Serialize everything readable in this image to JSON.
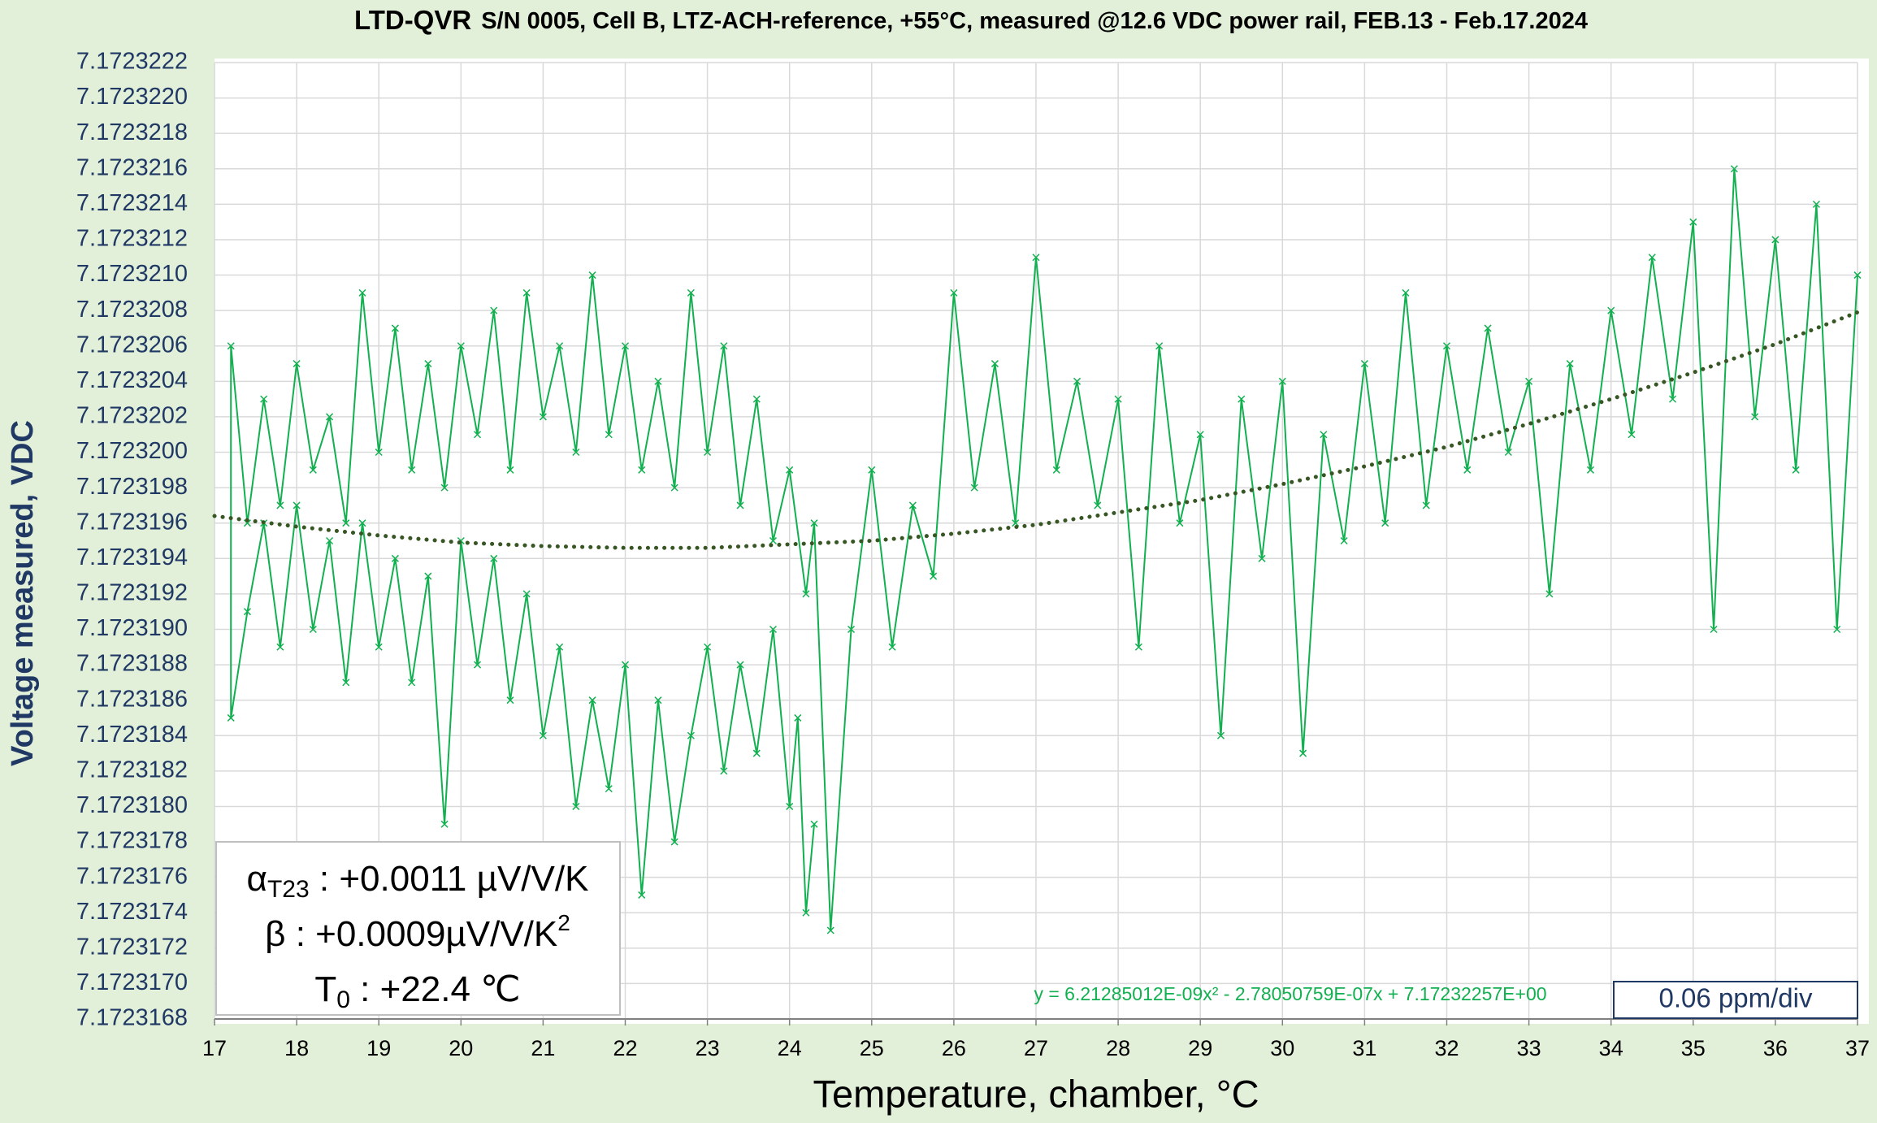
{
  "chart_data": {
    "type": "line",
    "title_prefix": "LTD-QVR",
    "title": "S/N 0005, Cell B, LTZ-ACH-reference, +55°C, measured @12.6 VDC power rail, FEB.13 - Feb.17.2024",
    "x_label": "Temperature, chamber, °C",
    "y_label": "Voltage measured, VDC",
    "xlim": [
      17,
      37
    ],
    "xticks": [
      17,
      18,
      19,
      20,
      21,
      22,
      23,
      24,
      25,
      26,
      27,
      28,
      29,
      30,
      31,
      32,
      33,
      34,
      35,
      36,
      37
    ],
    "ylim": [
      7.1723168,
      7.1723222
    ],
    "yticks": [
      7.1723168,
      {
        "value": 7.172317,
        "label": "7.1723170"
      },
      7.1723172,
      7.1723174,
      7.1723176,
      7.1723178,
      {
        "value": 7.172318,
        "label": "7.1723180"
      },
      7.1723182,
      7.1723184,
      7.1723186,
      7.1723188,
      {
        "value": 7.172319,
        "label": "7.1723190"
      },
      7.1723192,
      7.1723194,
      7.1723196,
      7.1723198,
      {
        "value": 7.17232,
        "label": "7.1723200"
      },
      7.1723202,
      7.1723204,
      7.1723206,
      7.1723208,
      {
        "value": 7.172321,
        "label": "7.1723210"
      },
      7.1723212,
      7.1723214,
      7.1723216,
      7.1723218,
      {
        "value": 7.172322,
        "label": "7.1723220"
      },
      7.1723222
    ],
    "grid": true,
    "series": [
      {
        "color": "#12b050",
        "marker": "x",
        "x": [
          24.3,
          24.2,
          24.1,
          24.0,
          23.8,
          23.6,
          23.4,
          23.2,
          23.0,
          22.8,
          22.6,
          22.4,
          22.2,
          22.0,
          21.8,
          21.6,
          21.4,
          21.2,
          21.0,
          20.8,
          20.6,
          20.4,
          20.2,
          20.0,
          19.8,
          19.6,
          19.4,
          19.2,
          19.0,
          18.8,
          18.6,
          18.4,
          18.2,
          18.0,
          17.8,
          17.6,
          17.4,
          17.2,
          17.2,
          17.4,
          17.6,
          17.8,
          18.0,
          18.2,
          18.4,
          18.6,
          18.8,
          19.0,
          19.2,
          19.4,
          19.6,
          19.8,
          20.0,
          20.2,
          20.4,
          20.6,
          20.8,
          21.0,
          21.2,
          21.4,
          21.6,
          21.8,
          22.0,
          22.2,
          22.4,
          22.6,
          22.8,
          23.0,
          23.2,
          23.4,
          23.6,
          23.8,
          24.0,
          24.2,
          24.3,
          24.5,
          24.75,
          25,
          25.25,
          25.5,
          25.75,
          26,
          26.25,
          26.5,
          26.75,
          27,
          27.25,
          27.5,
          27.75,
          28,
          28.25,
          28.5,
          28.75,
          29,
          29.25,
          29.5,
          29.75,
          30,
          30.25,
          30.5,
          30.75,
          31,
          31.25,
          31.5,
          31.75,
          32,
          32.25,
          32.5,
          32.75,
          33,
          33.25,
          33.5,
          33.75,
          34,
          34.25,
          34.5,
          34.75,
          35,
          35.25,
          35.5,
          35.75,
          36,
          36.25,
          36.5,
          36.75,
          37
        ],
        "values": [
          7.1723179,
          7.1723174,
          7.1723185,
          7.172318,
          7.172319,
          7.1723183,
          7.1723188,
          7.1723182,
          7.1723189,
          7.1723184,
          7.1723178,
          7.1723186,
          7.1723175,
          7.1723188,
          7.1723181,
          7.1723186,
          7.172318,
          7.1723189,
          7.1723184,
          7.1723192,
          7.1723186,
          7.1723194,
          7.1723188,
          7.1723195,
          7.1723179,
          7.1723193,
          7.1723187,
          7.1723194,
          7.1723189,
          7.1723196,
          7.1723187,
          7.1723195,
          7.172319,
          7.1723197,
          7.1723189,
          7.1723196,
          7.1723191,
          7.1723185,
          7.1723206,
          7.1723196,
          7.1723203,
          7.1723197,
          7.1723205,
          7.1723199,
          7.1723202,
          7.1723196,
          7.1723209,
          7.17232,
          7.1723207,
          7.1723199,
          7.1723205,
          7.1723198,
          7.1723206,
          7.1723201,
          7.1723208,
          7.1723199,
          7.1723209,
          7.1723202,
          7.1723206,
          7.17232,
          7.172321,
          7.1723201,
          7.1723206,
          7.1723199,
          7.1723204,
          7.1723198,
          7.1723209,
          7.17232,
          7.1723206,
          7.1723197,
          7.1723203,
          7.1723195,
          7.1723199,
          7.1723192,
          7.1723196,
          7.1723173,
          7.172319,
          7.1723199,
          7.1723189,
          7.1723197,
          7.1723193,
          7.1723209,
          7.1723198,
          7.1723205,
          7.1723196,
          7.1723211,
          7.1723199,
          7.1723204,
          7.1723197,
          7.1723203,
          7.1723189,
          7.1723206,
          7.1723196,
          7.1723201,
          7.1723184,
          7.1723203,
          7.1723194,
          7.1723204,
          7.1723183,
          7.1723201,
          7.1723195,
          7.1723205,
          7.1723196,
          7.1723209,
          7.1723197,
          7.1723206,
          7.1723199,
          7.1723207,
          7.17232,
          7.1723204,
          7.1723192,
          7.1723205,
          7.1723199,
          7.1723208,
          7.1723201,
          7.1723211,
          7.1723203,
          7.1723213,
          7.172319,
          7.1723216,
          7.1723202,
          7.1723212,
          7.1723199,
          7.1723214,
          7.172319,
          7.172321
        ]
      }
    ],
    "trendline": {
      "color": "#375623",
      "style": "dotted",
      "equation": "y = 6.21285012E-09x² - 2.78050759E-07x + 7.17232257E+00",
      "x": [
        17,
        18,
        19,
        20,
        21,
        22,
        23,
        24,
        25,
        26,
        27,
        28,
        29,
        30,
        31,
        32,
        33,
        34,
        35,
        36,
        37
      ],
      "values": [
        7.17231964,
        7.17231958,
        7.17231953,
        7.17231949,
        7.17231947,
        7.17231946,
        7.17231946,
        7.17231948,
        7.1723195,
        7.17231954,
        7.17231959,
        7.17231966,
        7.17231973,
        7.17231982,
        7.17231992,
        7.17232003,
        7.17232016,
        7.1723203,
        7.17232045,
        7.17232061,
        7.17232079
      ]
    },
    "coefficients": [
      [
        {
          "text": "α"
        },
        {
          "sub": "T23"
        },
        {
          "text": " : +0.0011 µV/V/K"
        }
      ],
      [
        {
          "text": "β : +0.0009µV/V/K"
        },
        {
          "sup": "2"
        }
      ],
      [
        {
          "text": "T"
        },
        {
          "sub": "0"
        },
        {
          "text": " : +22.4 ℃"
        }
      ]
    ],
    "scale_note": "0.06 ppm/div"
  }
}
